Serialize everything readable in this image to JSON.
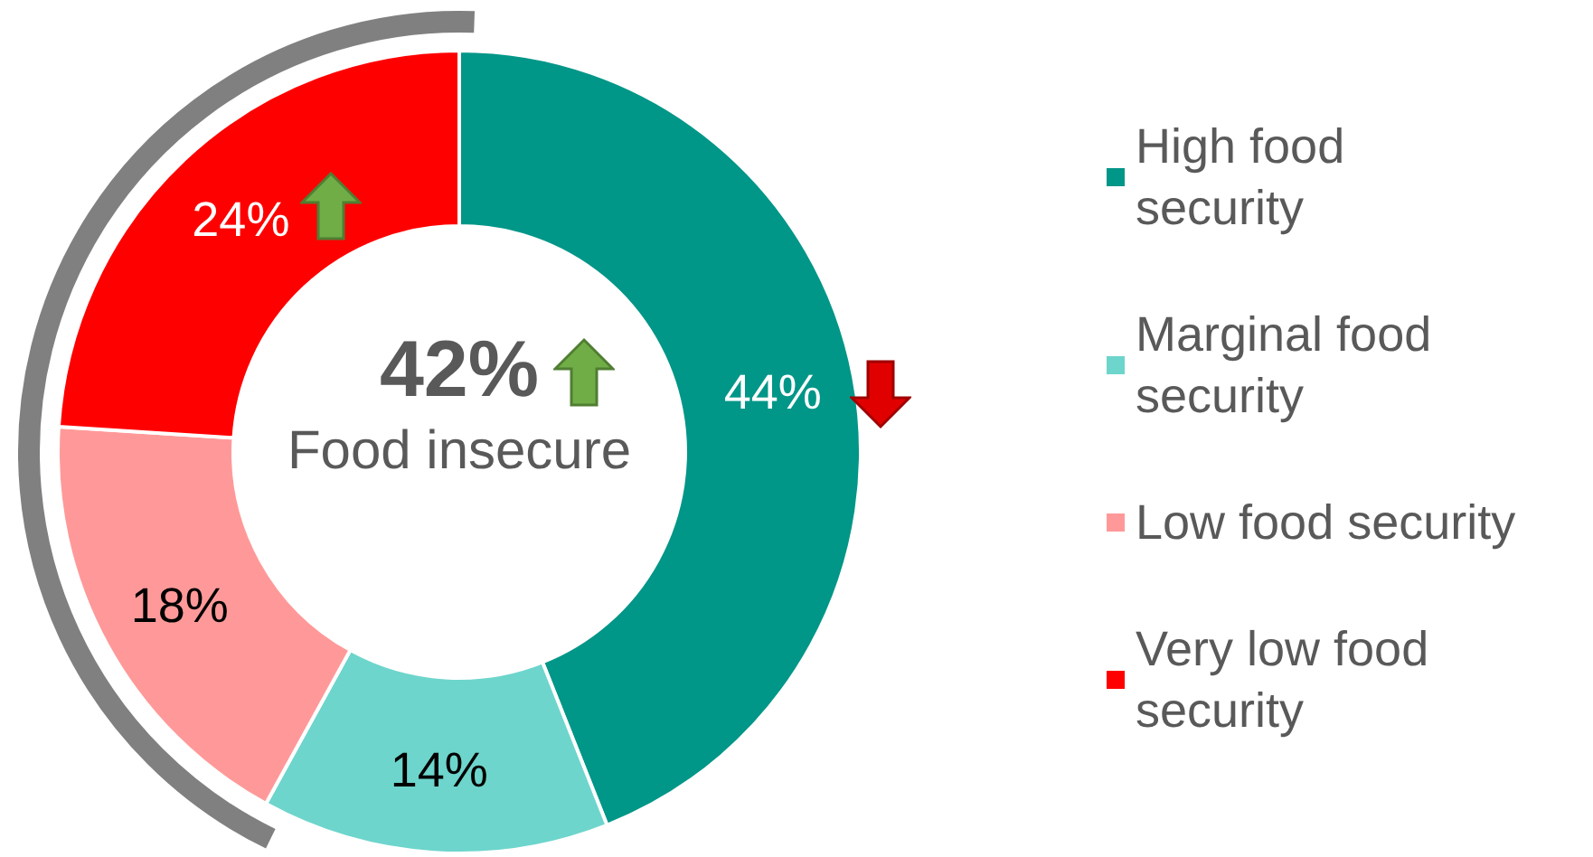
{
  "chart_data": {
    "type": "donut",
    "categories": [
      "High food security",
      "Marginal food security",
      "Low food security",
      "Very low food security"
    ],
    "values": [
      44,
      14,
      18,
      24
    ],
    "colors": [
      "#009688",
      "#6dd5cc",
      "#ff9999",
      "#ff0000"
    ],
    "value_labels": [
      "44%",
      "14%",
      "18%",
      "24%"
    ],
    "annotations": [
      "42%",
      "Food insecure"
    ],
    "legend": "right"
  }
}
